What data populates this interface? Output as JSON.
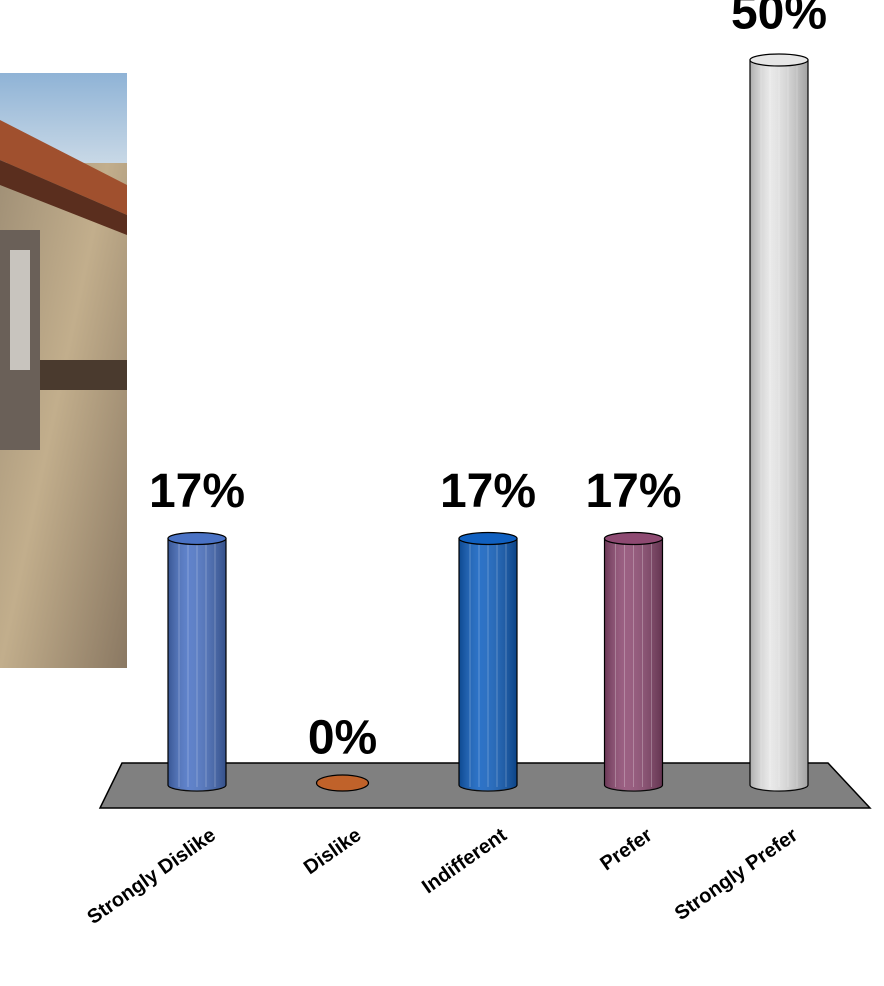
{
  "chart_data": {
    "type": "bar",
    "categories": [
      "Strongly Dislike",
      "Dislike",
      "Indifferent",
      "Prefer",
      "Strongly Prefer"
    ],
    "values": [
      17,
      0,
      17,
      17,
      50
    ],
    "value_labels": [
      "17%",
      "0%",
      "17%",
      "17%",
      "50%"
    ],
    "colors": [
      "#4a72c4",
      "#c0622a",
      "#1060c0",
      "#8e4a72",
      "#e6e6e6"
    ]
  }
}
